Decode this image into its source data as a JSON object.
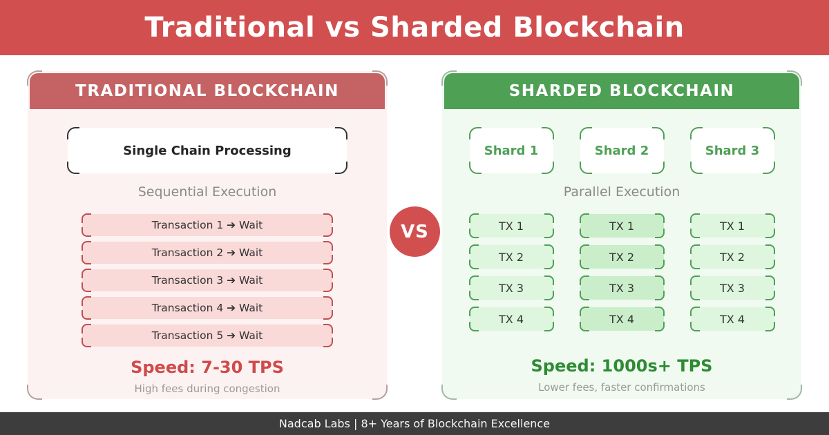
{
  "banner": {
    "title": "Traditional vs Sharded Blockchain"
  },
  "left_panel": {
    "title": "TRADITIONAL BLOCKCHAIN",
    "chain_box": "Single Chain Processing",
    "execution_label": "Sequential Execution",
    "transactions": [
      "Transaction 1 ➔ Wait",
      "Transaction 2 ➔ Wait",
      "Transaction 3 ➔ Wait",
      "Transaction 4 ➔ Wait",
      "Transaction 5 ➔ Wait"
    ],
    "speed": "Speed: 7-30 TPS",
    "note": "High fees during congestion"
  },
  "vs_badge": {
    "label": "VS"
  },
  "right_panel": {
    "title": "SHARDED BLOCKCHAIN",
    "shards": [
      "Shard 1",
      "Shard 2",
      "Shard 3"
    ],
    "execution_label": "Parallel Execution",
    "tx_labels": [
      "TX 1",
      "TX 2",
      "TX 3",
      "TX 4"
    ],
    "tx_columns": [
      {
        "name": "shard-1",
        "highlight": false
      },
      {
        "name": "shard-2",
        "highlight": true
      },
      {
        "name": "shard-3",
        "highlight": false
      }
    ],
    "speed": "Speed: 1000s+ TPS",
    "note": "Lower fees, faster confirmations"
  },
  "footer": {
    "text": "Nadcab Labs | 8+ Years of Blockchain Excellence"
  },
  "colors": {
    "banner_bg": "#d24f50",
    "vs_bg": "#d24f50",
    "left_header_bg": "#c56364",
    "right_header_bg": "#4ea055",
    "left_panel_bg": "#fdf2f2",
    "right_panel_bg": "#f0faf0",
    "tx_row_bg": "#fad9d9",
    "tx_row_border": "#c0504f",
    "tx_cell_bg": "#ddf6dd",
    "tx_cell_highlight_bg": "#c9eec9",
    "tx_cell_border": "#4ea055",
    "left_speed_color": "#d04a4a",
    "right_speed_color": "#2e8b34",
    "footer_bg": "#3d3d3d"
  }
}
